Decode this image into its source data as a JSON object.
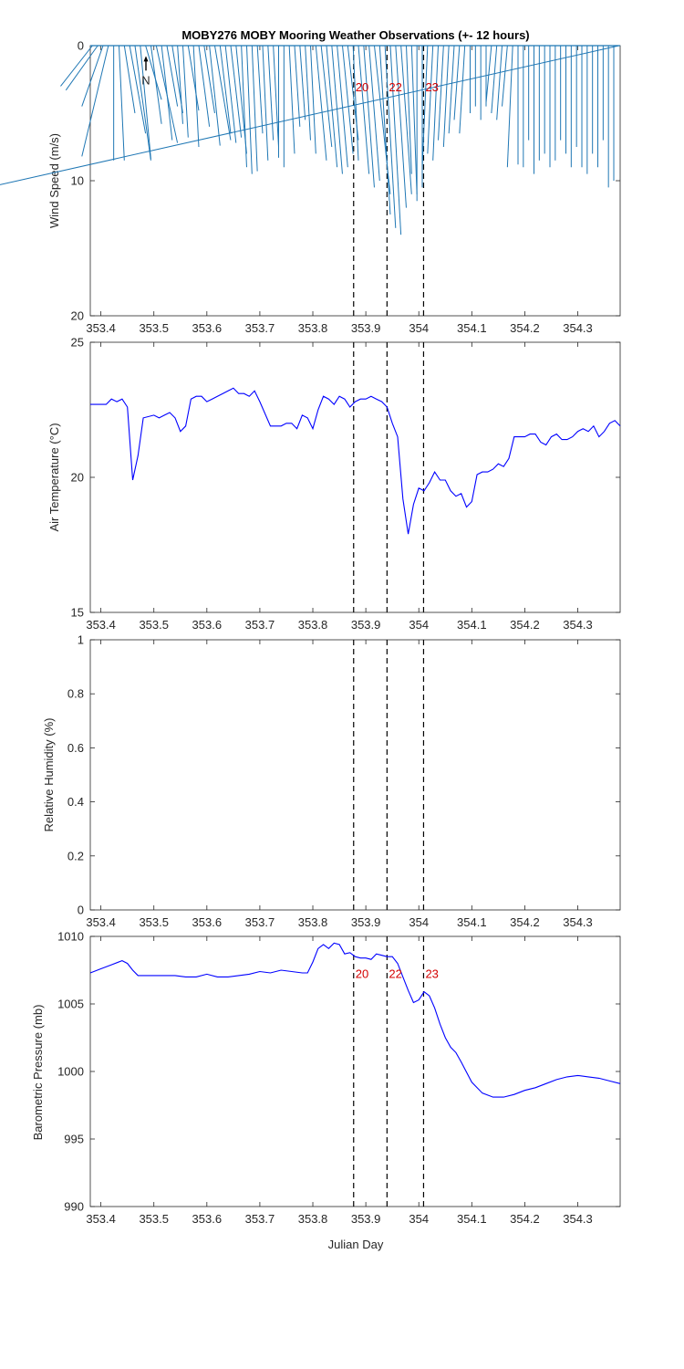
{
  "chart_data": {
    "title": "MOBY276 MOBY Mooring Weather Observations (+- 12 hours)",
    "xlabel": "Julian Day",
    "xlim": [
      353.38,
      354.38
    ],
    "xticks": [
      "353.4",
      "353.5",
      "353.6",
      "353.7",
      "353.8",
      "353.9",
      "354",
      "354.1",
      "354.2",
      "354.3"
    ],
    "xtick_values": [
      353.4,
      353.5,
      353.6,
      353.7,
      353.8,
      353.9,
      354.0,
      354.1,
      354.2,
      354.3
    ],
    "event_lines": [
      {
        "x": 353.877,
        "label": "20"
      },
      {
        "x": 353.94,
        "label": "22"
      },
      {
        "x": 354.009,
        "label": "23"
      }
    ],
    "north_label": "N",
    "panels": [
      {
        "id": "wind",
        "type": "vector",
        "ylabel": "Wind Speed (m/s)",
        "ylim": [
          0,
          20
        ],
        "yticks": [
          "0",
          "10",
          "20"
        ],
        "ytick_values": [
          0,
          10,
          20
        ],
        "y_reversed": true,
        "color": "#1f77b4",
        "stick_dx": [
          -0.06,
          -0.06,
          -0.04,
          -0.05,
          0.0,
          0.01,
          0.02,
          0.03,
          0.03,
          0.02,
          0.03,
          0.02,
          0.04,
          0.02,
          0.02,
          0.02,
          0.01,
          0.01,
          0.02,
          0.01,
          0.02,
          0.02,
          0.02,
          0.03,
          0.02,
          0.02,
          0.02,
          0.02,
          0.01,
          0.01,
          0.01,
          0.01,
          0.01,
          0.01,
          0.01,
          0.0,
          0.0,
          0.01,
          0.01,
          0.01,
          0.01,
          0.01,
          0.02,
          0.02,
          0.02,
          0.02,
          0.02,
          0.02,
          0.02,
          0.01,
          0.02,
          0.02,
          0.02,
          0.03,
          0.02,
          0.02,
          0.02,
          0.02,
          0.02,
          0.01,
          0.01,
          0.0,
          0.0,
          -0.01,
          -0.01,
          -0.01,
          -0.01,
          -0.01,
          -0.01,
          -0.01,
          -0.01,
          0.0,
          0.0,
          0.0,
          0.0,
          -0.01,
          -0.01,
          -0.01,
          -0.01,
          -0.01,
          0.0,
          0.0,
          0.0,
          0.0,
          0.0,
          0.0,
          0.0,
          0.0,
          0.0,
          0.0,
          0.0,
          0.0,
          0.0,
          0.0,
          0.0,
          0.0,
          0.0,
          0.0,
          0.0
        ],
        "stick_speed": [
          3.0,
          3.3,
          4.5,
          8.2,
          8.5,
          8.5,
          5.0,
          6.5,
          8.5,
          8.4,
          4.0,
          5.8,
          7.2,
          7.0,
          4.5,
          5.0,
          5.8,
          6.8,
          4.8,
          7.5,
          6.0,
          5.0,
          7.4,
          7.0,
          6.5,
          7.2,
          6.8,
          8.0,
          9.0,
          9.5,
          9.3,
          6.5,
          8.5,
          7.0,
          7.5,
          8.3,
          9.0,
          8.0,
          6.0,
          5.5,
          7.0,
          8.0,
          8.5,
          7.5,
          9.0,
          9.5,
          9.0,
          8.0,
          7.0,
          8.5,
          9.5,
          10.5,
          10.0,
          11.0,
          12.5,
          13.5,
          14.0,
          12.0,
          11.0,
          9.5,
          11.0,
          11.5,
          10.5,
          9.0,
          8.0,
          8.5,
          7.0,
          7.5,
          6.5,
          5.5,
          6.5,
          5.0,
          4.5,
          5.5,
          4.5,
          4.2,
          5.0,
          5.5,
          4.5,
          9.0,
          8.8,
          9.0,
          7.0,
          9.5,
          8.5,
          8.0,
          9.0,
          8.5,
          7.0,
          8.0,
          9.0,
          7.5,
          9.0,
          9.5,
          8.0,
          9.0,
          7.0,
          10.5,
          10.0,
          10.3
        ]
      },
      {
        "id": "air-temp",
        "type": "line",
        "ylabel": "Air Temperature (°C)",
        "ylim": [
          15,
          25
        ],
        "yticks": [
          "15",
          "20",
          "25"
        ],
        "ytick_values": [
          15,
          20,
          25
        ],
        "color": "#0000ff",
        "x": [
          353.38,
          353.39,
          353.41,
          353.42,
          353.43,
          353.44,
          353.45,
          353.46,
          353.47,
          353.48,
          353.5,
          353.51,
          353.52,
          353.53,
          353.54,
          353.55,
          353.56,
          353.57,
          353.58,
          353.59,
          353.6,
          353.61,
          353.62,
          353.63,
          353.64,
          353.65,
          353.66,
          353.67,
          353.68,
          353.69,
          353.7,
          353.72,
          353.74,
          353.75,
          353.76,
          353.77,
          353.78,
          353.79,
          353.8,
          353.81,
          353.82,
          353.83,
          353.84,
          353.85,
          353.86,
          353.87,
          353.88,
          353.89,
          353.9,
          353.91,
          353.92,
          353.93,
          353.94,
          353.95,
          353.96,
          353.97,
          353.98,
          353.99,
          354.0,
          354.01,
          354.02,
          354.03,
          354.04,
          354.05,
          354.06,
          354.07,
          354.08,
          354.09,
          354.1,
          354.11,
          354.12,
          354.13,
          354.14,
          354.15,
          354.16,
          354.17,
          354.18,
          354.19,
          354.2,
          354.21,
          354.22,
          354.23,
          354.24,
          354.25,
          354.26,
          354.27,
          354.28,
          354.29,
          354.3,
          354.31,
          354.32,
          354.33,
          354.34,
          354.35,
          354.36,
          354.37,
          354.38
        ],
        "y": [
          22.7,
          22.7,
          22.7,
          22.9,
          22.8,
          22.9,
          22.6,
          19.9,
          20.8,
          22.2,
          22.3,
          22.2,
          22.3,
          22.4,
          22.2,
          21.7,
          21.9,
          22.9,
          23.0,
          23.0,
          22.8,
          22.9,
          23.0,
          23.1,
          23.2,
          23.3,
          23.1,
          23.1,
          23.0,
          23.2,
          22.8,
          21.9,
          21.9,
          22.0,
          22.0,
          21.8,
          22.3,
          22.2,
          21.8,
          22.5,
          23.0,
          22.9,
          22.7,
          23.0,
          22.9,
          22.6,
          22.8,
          22.9,
          22.9,
          23.0,
          22.9,
          22.8,
          22.6,
          22.0,
          21.5,
          19.2,
          17.9,
          19.0,
          19.6,
          19.5,
          19.8,
          20.2,
          19.9,
          19.9,
          19.5,
          19.3,
          19.4,
          18.9,
          19.1,
          20.1,
          20.2,
          20.2,
          20.3,
          20.5,
          20.4,
          20.7,
          21.5,
          21.5,
          21.5,
          21.6,
          21.6,
          21.3,
          21.2,
          21.5,
          21.6,
          21.4,
          21.4,
          21.5,
          21.7,
          21.8,
          21.7,
          21.9,
          21.5,
          21.7,
          22.0,
          22.1,
          21.9
        ]
      },
      {
        "id": "humidity",
        "type": "line",
        "ylabel": "Relative Humidity (%)",
        "ylim": [
          0,
          1
        ],
        "yticks": [
          "0",
          "0.2",
          "0.4",
          "0.6",
          "0.8",
          "1"
        ],
        "ytick_values": [
          0,
          0.2,
          0.4,
          0.6,
          0.8,
          1.0
        ],
        "color": "#0000ff",
        "x": [],
        "y": []
      },
      {
        "id": "pressure",
        "type": "line",
        "ylabel": "Barometric Pressure (mb)",
        "ylim": [
          990,
          1010
        ],
        "yticks": [
          "990",
          "995",
          "1000",
          "1005",
          "1010"
        ],
        "ytick_values": [
          990,
          995,
          1000,
          1005,
          1010
        ],
        "color": "#0000ff",
        "x": [
          353.38,
          353.4,
          353.42,
          353.44,
          353.45,
          353.46,
          353.47,
          353.48,
          353.49,
          353.5,
          353.52,
          353.54,
          353.56,
          353.58,
          353.6,
          353.62,
          353.64,
          353.66,
          353.68,
          353.7,
          353.72,
          353.74,
          353.76,
          353.78,
          353.79,
          353.8,
          353.81,
          353.82,
          353.83,
          353.84,
          353.85,
          353.86,
          353.87,
          353.88,
          353.89,
          353.9,
          353.91,
          353.92,
          353.93,
          353.94,
          353.95,
          353.96,
          353.97,
          353.98,
          353.99,
          354.0,
          354.01,
          354.02,
          354.03,
          354.04,
          354.05,
          354.06,
          354.07,
          354.08,
          354.1,
          354.12,
          354.14,
          354.16,
          354.18,
          354.2,
          354.22,
          354.24,
          354.26,
          354.28,
          354.3,
          354.32,
          354.34,
          354.36,
          354.38
        ],
        "y": [
          1007.3,
          1007.6,
          1007.9,
          1008.2,
          1008.0,
          1007.5,
          1007.1,
          1007.1,
          1007.1,
          1007.1,
          1007.1,
          1007.1,
          1007.0,
          1007.0,
          1007.2,
          1007.0,
          1007.0,
          1007.1,
          1007.2,
          1007.4,
          1007.3,
          1007.5,
          1007.4,
          1007.3,
          1007.3,
          1008.1,
          1009.1,
          1009.4,
          1009.1,
          1009.5,
          1009.4,
          1008.7,
          1008.8,
          1008.5,
          1008.4,
          1008.4,
          1008.3,
          1008.7,
          1008.6,
          1008.5,
          1008.5,
          1008.0,
          1007.0,
          1006.0,
          1005.1,
          1005.3,
          1005.9,
          1005.6,
          1004.7,
          1003.5,
          1002.5,
          1001.8,
          1001.4,
          1000.7,
          999.2,
          998.4,
          998.1,
          998.1,
          998.3,
          998.6,
          998.8,
          999.1,
          999.4,
          999.6,
          999.7,
          999.6,
          999.5,
          999.3,
          999.1
        ]
      }
    ]
  }
}
